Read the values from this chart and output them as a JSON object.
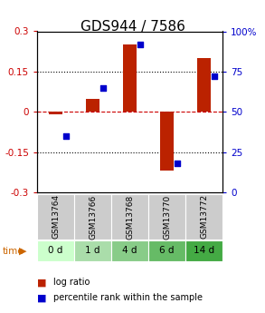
{
  "title": "GDS944 / 7586",
  "samples": [
    "GSM13764",
    "GSM13766",
    "GSM13768",
    "GSM13770",
    "GSM13772"
  ],
  "time_labels": [
    "0 d",
    "1 d",
    "4 d",
    "6 d",
    "14 d"
  ],
  "log_ratio": [
    -0.01,
    0.05,
    0.25,
    -0.22,
    0.2
  ],
  "percentile_rank": [
    35,
    65,
    92,
    18,
    72
  ],
  "bar_color": "#bb2200",
  "dot_color": "#0000cc",
  "bg_color_gsm": "#cccccc",
  "time_colors": [
    "#ccffcc",
    "#aaddaa",
    "#88cc88",
    "#66bb66",
    "#44aa44"
  ],
  "yticks_left": [
    -0.3,
    -0.15,
    0.0,
    0.15,
    0.3
  ],
  "yticklabels_left": [
    "-0.3",
    "-0.15",
    "0",
    "0.15",
    "0.3"
  ],
  "yticks_right": [
    0,
    25,
    50,
    75,
    100
  ],
  "yticklabels_right": [
    "0",
    "25",
    "50",
    "75",
    "100%"
  ],
  "title_fontsize": 11,
  "tick_fontsize": 7.5,
  "legend_fontsize": 7.0,
  "gsm_fontsize": 6.5,
  "time_fontsize": 7.5
}
